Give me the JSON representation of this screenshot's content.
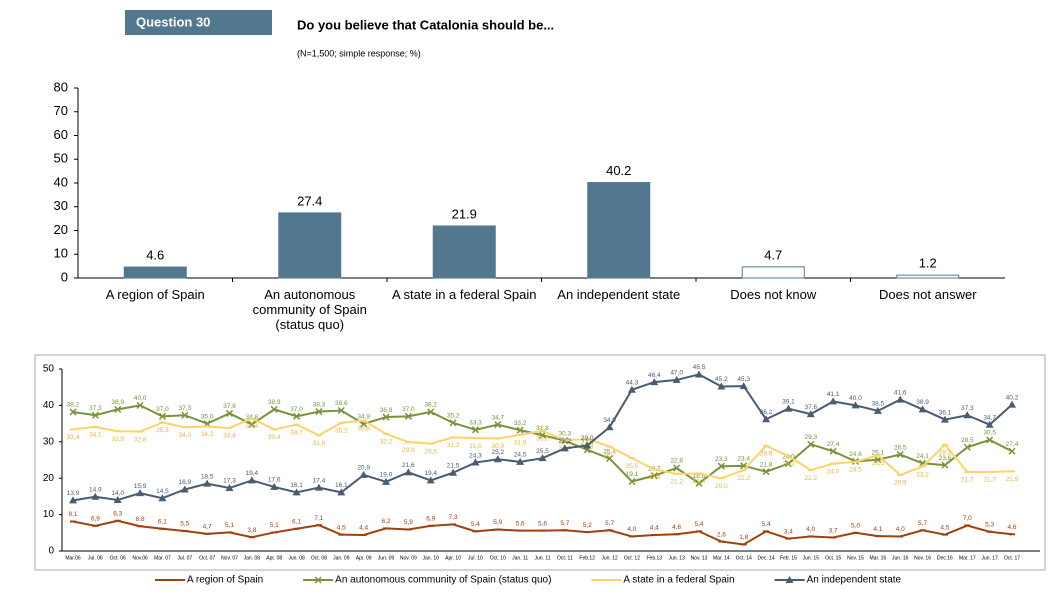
{
  "header": "Question 30",
  "chart_data": [
    {
      "type": "bar",
      "title": "Do you believe that Catalonia should be...",
      "subtitle": "(N=1,500; simple response; %)",
      "categories": [
        "A region of Spain",
        "An autonomous community of Spain (status quo)",
        "A state in a federal Spain",
        "An independent state",
        "Does not know",
        "Does not answer"
      ],
      "values": [
        4.6,
        27.4,
        21.9,
        40.2,
        4.7,
        1.2
      ],
      "color": "#52788f",
      "fills": [
        "#52788f",
        "#52788f",
        "#52788f",
        "#52788f",
        "#ffffff",
        "#ffffff"
      ],
      "ylim": [
        0,
        80
      ],
      "yticks": [
        0,
        10,
        20,
        30,
        40,
        50,
        60,
        70,
        80
      ],
      "grid": false
    },
    {
      "type": "line",
      "categories": [
        "Mar.06",
        "Jul. 06",
        "Oct. 06",
        "Nov.06",
        "Mar. 07",
        "Jul. 07",
        "Oct. 07",
        "Nov. 07",
        "Jan. 08",
        "Apr. 08",
        "Jun. 08",
        "Oct. 08",
        "Jan. 09",
        "Apr. 09",
        "Jun. 09",
        "Nov. 09",
        "Jan. 10",
        "Apr. 10",
        "Jul. 10",
        "Oct. 10",
        "Jan. 11",
        "Jun. 11",
        "Oct. 11",
        "Feb.12",
        "Jun. 12",
        "Oct. 12",
        "Feb.13",
        "Jun. 13",
        "Nov. 13",
        "Mar. 14",
        "Oct. 14",
        "Dec. 14",
        "Feb. 15",
        "Jun. 15",
        "Oct. 15",
        "Nov. 15",
        "Mar. 16",
        "Jun. 16",
        "Nov. 16",
        "Dec.16",
        "Mar. 17",
        "Jun. 17",
        "Oct. 17"
      ],
      "series": [
        {
          "name": "A region of Spain",
          "color": "#a0410d",
          "marker": "dash",
          "values": [
            8.1,
            6.9,
            8.3,
            6.8,
            6.1,
            5.5,
            4.7,
            5.1,
            3.8,
            5.1,
            6.1,
            7.1,
            4.5,
            4.4,
            6.2,
            5.9,
            6.9,
            7.3,
            5.4,
            5.9,
            5.6,
            5.6,
            5.7,
            5.2,
            5.7,
            4.0,
            4.4,
            4.6,
            5.4,
            2.6,
            1.8,
            5.4,
            3.4,
            4.0,
            3.7,
            5.0,
            4.1,
            4.0,
            5.7,
            4.5,
            7.0,
            5.3,
            4.6
          ],
          "value_labels": [
            "8,1",
            "6,9",
            "8,3",
            "6,8",
            "6,1",
            "5,5",
            "4,7",
            "5,1",
            "3,8",
            "5,1",
            "6,1",
            "7,1",
            "4,5",
            "4,4",
            "6,2",
            "5,9",
            "6,9",
            "7,3",
            "5,4",
            "5,9",
            "5,6",
            "5,6",
            "5,7",
            "5,2",
            "5,7",
            "4,0",
            "4,4",
            "4,6",
            "5,4",
            "2,6",
            "1,8",
            "5,4",
            "3,4",
            "4,0",
            "3,7",
            "5,0",
            "4,1",
            "4,0",
            "5,7",
            "4,5",
            "7,0",
            "5,3",
            "4,6"
          ]
        },
        {
          "name": "An autonomous community of Spain (status quo)",
          "color": "#77933c",
          "marker": "x",
          "values": [
            38.2,
            37.3,
            38.9,
            40.0,
            37.0,
            37.3,
            35.0,
            37.8,
            34.8,
            38.9,
            37.0,
            38.3,
            38.6,
            34.9,
            36.8,
            37.0,
            38.2,
            35.2,
            33.3,
            34.7,
            33.2,
            31.8,
            30.3,
            27.8,
            25.4,
            19.1,
            20.7,
            22.8,
            18.6,
            23.3,
            23.4,
            21.8,
            24.0,
            29.3,
            27.4,
            24.6,
            25.1,
            26.5,
            24.1,
            23.6,
            28.5,
            30.5,
            27.4
          ],
          "value_labels": [
            "38,2",
            "37,3",
            "38,9",
            "40,0",
            "37,0",
            "37,3",
            "35,0",
            "37,8",
            "34,8",
            "38,9",
            "37,0",
            "38,3",
            "38,6",
            "34,9",
            "36,8",
            "37,0",
            "38,2",
            "35,2",
            "33,3",
            "34,7",
            "33,2",
            "31,8",
            "30,3",
            "27,8",
            "25,4",
            "19,1",
            "20,7",
            "22,8",
            "18,6",
            "23,3",
            "23,4",
            "21,8",
            "24,0",
            "29,3",
            "27,4",
            "24,6",
            "25,1",
            "26,5",
            "24,1",
            "23,6",
            "28,5",
            "30,5",
            "27,4"
          ]
        },
        {
          "name": "A state in a federal Spain",
          "color": "#fcd36b",
          "marker": "dash",
          "values": [
            33.4,
            34.1,
            32.9,
            32.8,
            35.3,
            34.0,
            34.2,
            33.8,
            36.4,
            33.4,
            34.7,
            31.8,
            35.2,
            35.8,
            32.2,
            29.9,
            29.5,
            31.2,
            31.0,
            30.9,
            31.9,
            33.0,
            30.4,
            30.8,
            28.7,
            25.5,
            22.4,
            21.2,
            21.3,
            20.0,
            22.2,
            28.9,
            26.1,
            22.2,
            24.0,
            24.5,
            26.3,
            20.9,
            23.2,
            29.2,
            21.7,
            21.7,
            21.9
          ],
          "value_labels": [
            "33,4",
            "34,1",
            "32,9",
            "32,8",
            "35,3",
            "34,0",
            "34,2",
            "33,8",
            "36,4",
            "33,4",
            "34,7",
            "31,8",
            "35,2",
            "35,8",
            "32,2",
            "29,9",
            "29,5",
            "31,2",
            "31,0",
            "30,9",
            "31,9",
            "33,0",
            "30,4",
            "30,8",
            "28,7",
            "25,5",
            "22,4",
            "21,2",
            "21,3",
            "20,0",
            "22,2",
            "28,9",
            "26,1",
            "22,2",
            "24,0",
            "24,5",
            "26,3",
            "20,9",
            "23,2",
            "29,2",
            "21,7",
            "21,7",
            "21,9"
          ]
        },
        {
          "name": "An independent state",
          "color": "#4a5b72",
          "marker": "triangle",
          "values": [
            13.9,
            14.9,
            14.0,
            15.9,
            14.5,
            16.9,
            18.5,
            17.3,
            19.4,
            17.6,
            16.1,
            17.4,
            16.1,
            20.9,
            19.0,
            21.6,
            19.4,
            21.5,
            24.3,
            25.2,
            24.5,
            25.5,
            28.2,
            29.0,
            34.0,
            44.3,
            46.4,
            47.0,
            48.5,
            45.2,
            45.3,
            36.2,
            39.1,
            37.6,
            41.1,
            40.0,
            38.5,
            41.6,
            38.9,
            36.1,
            37.3,
            34.7,
            40.2
          ],
          "value_labels": [
            "13,9",
            "14,9",
            "14,0",
            "15,9",
            "14,5",
            "16,9",
            "18,5",
            "17,3",
            "19,4",
            "17,6",
            "16,1",
            "17,4",
            "16,1",
            "20,9",
            "19,0",
            "21,6",
            "19,4",
            "21,5",
            "24,3",
            "25,2",
            "24,5",
            "25,5",
            "28,2",
            "29,0",
            "34,0",
            "44,3",
            "46,4",
            "47,0",
            "48,5",
            "45,2",
            "45,3",
            "36,2",
            "39,1",
            "37,6",
            "41,1",
            "40,0",
            "38,5",
            "41,6",
            "38,9",
            "36,1",
            "37,3",
            "34,7",
            "40,2"
          ]
        }
      ],
      "ylim": [
        0,
        50
      ],
      "yticks": [
        0,
        10,
        20,
        30,
        40,
        50
      ],
      "grid": false,
      "legend": "bottom"
    }
  ]
}
